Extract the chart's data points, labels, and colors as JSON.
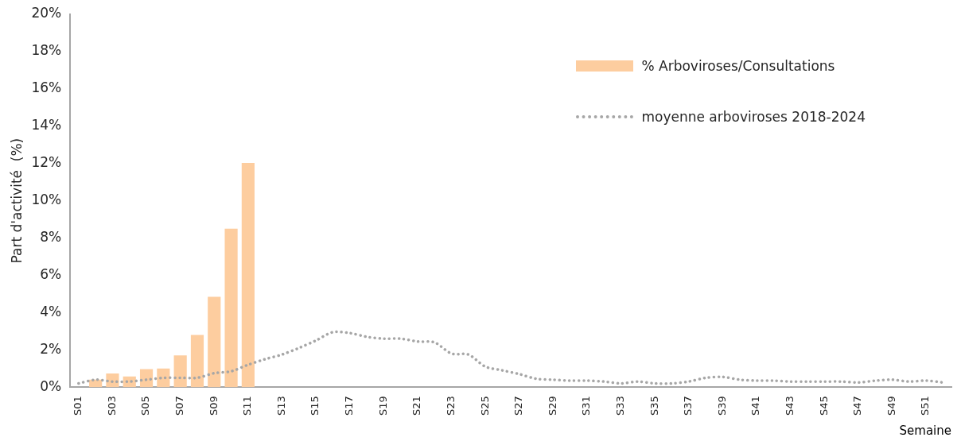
{
  "chart_data": {
    "type": "bar",
    "categories": [
      "S01",
      null,
      "S03",
      null,
      "S05",
      null,
      "S07",
      null,
      "S09",
      null,
      "S11",
      null,
      "S13",
      null,
      "S15",
      null,
      "S17",
      null,
      "S19",
      null,
      "S21",
      null,
      "S23",
      null,
      "S25",
      null,
      "S27",
      null,
      "S29",
      null,
      "S31",
      null,
      "S33",
      null,
      "S35",
      null,
      "S37",
      null,
      "S39",
      null,
      "S41",
      null,
      "S43",
      null,
      "S45",
      null,
      "S47",
      null,
      "S49",
      null,
      "S51",
      null
    ],
    "series": [
      {
        "name": "% Arboviroses/Consultations",
        "color": "#fdcd9f",
        "values": [
          null,
          0.4,
          0.73,
          0.57,
          0.97,
          1.0,
          1.7,
          2.8,
          4.85,
          8.5,
          12.03,
          null,
          null,
          null,
          null,
          null,
          null,
          null,
          null,
          null,
          null,
          null,
          null,
          null,
          null,
          null,
          null,
          null,
          null,
          null,
          null,
          null,
          null,
          null,
          null,
          null,
          null,
          null,
          null,
          null,
          null,
          null,
          null,
          null,
          null,
          null,
          null,
          null,
          null,
          null,
          null,
          null
        ]
      },
      {
        "name": "moyenne arboviroses 2018-2024",
        "type": "line",
        "color": "#a6a6a6",
        "line_style": "dotted",
        "marker": "none",
        "values": [
          0.2,
          0.4,
          0.3,
          0.3,
          0.4,
          0.5,
          0.5,
          0.5,
          0.75,
          0.85,
          1.2,
          1.5,
          1.75,
          2.1,
          2.5,
          2.95,
          2.9,
          2.7,
          2.6,
          2.6,
          2.45,
          2.4,
          1.8,
          1.75,
          1.1,
          0.9,
          0.7,
          0.45,
          0.4,
          0.35,
          0.35,
          0.3,
          0.2,
          0.3,
          0.2,
          0.2,
          0.3,
          0.5,
          0.55,
          0.4,
          0.35,
          0.35,
          0.3,
          0.3,
          0.3,
          0.3,
          0.25,
          0.35,
          0.4,
          0.3,
          0.35,
          0.25
        ]
      }
    ],
    "ylim": [
      0,
      20
    ],
    "yticks": [
      {
        "value": 0,
        "label": "0%"
      },
      {
        "value": 2,
        "label": "2%"
      },
      {
        "value": 4,
        "label": "4%"
      },
      {
        "value": 6,
        "label": "6%"
      },
      {
        "value": 8,
        "label": "8%"
      },
      {
        "value": 10,
        "label": "10%"
      },
      {
        "value": 12,
        "label": "12%"
      },
      {
        "value": 14,
        "label": "14%"
      },
      {
        "value": 16,
        "label": "16%"
      },
      {
        "value": 18,
        "label": "18%"
      },
      {
        "value": 20,
        "label": "20%"
      }
    ],
    "ylabel": "Part d'activité  (%)",
    "xlabel": "Semaine",
    "grid": false,
    "legend": "top right"
  }
}
